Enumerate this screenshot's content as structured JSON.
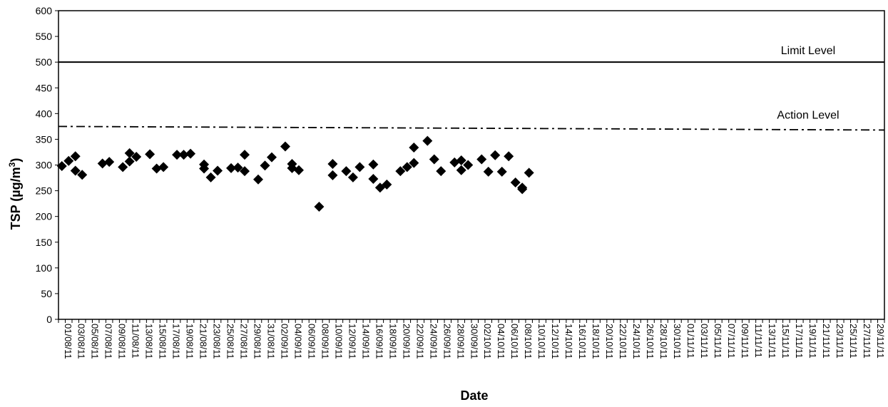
{
  "chart_data": {
    "type": "scatter",
    "title": "",
    "xlabel": "Date",
    "ylabel": "TSP (µg/m³)",
    "ylabel_parts": {
      "main": "TSP (µg/m",
      "superscript": "3",
      "close": ")"
    },
    "ylim": [
      0,
      600
    ],
    "yticks": [
      0,
      50,
      100,
      150,
      200,
      250,
      300,
      350,
      400,
      450,
      500,
      550,
      600
    ],
    "grid": false,
    "x_start_date": "2011-08-01",
    "x_end_date": "2011-11-30",
    "x_tick_labels": [
      "01/08/11",
      "03/08/11",
      "05/08/11",
      "07/08/11",
      "09/08/11",
      "11/08/11",
      "13/08/11",
      "15/08/11",
      "17/08/11",
      "19/08/11",
      "21/08/11",
      "23/08/11",
      "25/08/11",
      "27/08/11",
      "29/08/11",
      "31/08/11",
      "02/09/11",
      "04/09/11",
      "06/09/11",
      "08/09/11",
      "10/09/11",
      "12/09/11",
      "14/09/11",
      "16/09/11",
      "18/09/11",
      "20/09/11",
      "22/09/11",
      "24/09/11",
      "26/09/11",
      "28/09/11",
      "30/09/11",
      "02/10/11",
      "04/10/11",
      "06/10/11",
      "08/10/11",
      "10/10/11",
      "12/10/11",
      "14/10/11",
      "16/10/11",
      "18/10/11",
      "20/10/11",
      "22/10/11",
      "24/10/11",
      "26/10/11",
      "28/10/11",
      "30/10/11",
      "01/11/11",
      "03/11/11",
      "05/11/11",
      "07/11/11",
      "09/11/11",
      "11/11/11",
      "13/11/11",
      "15/11/11",
      "17/11/11",
      "19/11/11",
      "21/11/11",
      "23/11/11",
      "25/11/11",
      "27/11/11",
      "29/11/11"
    ],
    "reference_lines": [
      {
        "label": "Limit Level",
        "y": 500,
        "style": "solid"
      },
      {
        "label": "Action Level",
        "y": 375,
        "y_end": 368,
        "style": "dash-dot"
      }
    ],
    "series": [
      {
        "marker": "diamond",
        "color": "#000000",
        "points": [
          {
            "x": "2011-08-01",
            "y": 298
          },
          {
            "x": "2011-08-02",
            "y": 308
          },
          {
            "x": "2011-08-03",
            "y": 317
          },
          {
            "x": "2011-08-03",
            "y": 289
          },
          {
            "x": "2011-08-04",
            "y": 281
          },
          {
            "x": "2011-08-07",
            "y": 303
          },
          {
            "x": "2011-08-08",
            "y": 306
          },
          {
            "x": "2011-08-10",
            "y": 296
          },
          {
            "x": "2011-08-11",
            "y": 323
          },
          {
            "x": "2011-08-11",
            "y": 307
          },
          {
            "x": "2011-08-12",
            "y": 316
          },
          {
            "x": "2011-08-14",
            "y": 321
          },
          {
            "x": "2011-08-15",
            "y": 293
          },
          {
            "x": "2011-08-16",
            "y": 296
          },
          {
            "x": "2011-08-18",
            "y": 320
          },
          {
            "x": "2011-08-19",
            "y": 320
          },
          {
            "x": "2011-08-20",
            "y": 322
          },
          {
            "x": "2011-08-22",
            "y": 301
          },
          {
            "x": "2011-08-22",
            "y": 293
          },
          {
            "x": "2011-08-23",
            "y": 276
          },
          {
            "x": "2011-08-24",
            "y": 289
          },
          {
            "x": "2011-08-26",
            "y": 294
          },
          {
            "x": "2011-08-27",
            "y": 295
          },
          {
            "x": "2011-08-28",
            "y": 320
          },
          {
            "x": "2011-08-28",
            "y": 288
          },
          {
            "x": "2011-08-30",
            "y": 272
          },
          {
            "x": "2011-08-31",
            "y": 299
          },
          {
            "x": "2011-09-01",
            "y": 315
          },
          {
            "x": "2011-09-03",
            "y": 336
          },
          {
            "x": "2011-09-04",
            "y": 302
          },
          {
            "x": "2011-09-04",
            "y": 294
          },
          {
            "x": "2011-09-05",
            "y": 290
          },
          {
            "x": "2011-09-08",
            "y": 219
          },
          {
            "x": "2011-09-10",
            "y": 302
          },
          {
            "x": "2011-09-10",
            "y": 280
          },
          {
            "x": "2011-09-12",
            "y": 288
          },
          {
            "x": "2011-09-13",
            "y": 276
          },
          {
            "x": "2011-09-14",
            "y": 296
          },
          {
            "x": "2011-09-16",
            "y": 301
          },
          {
            "x": "2011-09-16",
            "y": 273
          },
          {
            "x": "2011-09-17",
            "y": 256
          },
          {
            "x": "2011-09-18",
            "y": 262
          },
          {
            "x": "2011-09-20",
            "y": 288
          },
          {
            "x": "2011-09-21",
            "y": 296
          },
          {
            "x": "2011-09-22",
            "y": 304
          },
          {
            "x": "2011-09-22",
            "y": 334
          },
          {
            "x": "2011-09-24",
            "y": 347
          },
          {
            "x": "2011-09-25",
            "y": 311
          },
          {
            "x": "2011-09-26",
            "y": 288
          },
          {
            "x": "2011-09-28",
            "y": 305
          },
          {
            "x": "2011-09-29",
            "y": 309
          },
          {
            "x": "2011-09-29",
            "y": 290
          },
          {
            "x": "2011-09-30",
            "y": 300
          },
          {
            "x": "2011-10-02",
            "y": 311
          },
          {
            "x": "2011-10-03",
            "y": 287
          },
          {
            "x": "2011-10-04",
            "y": 319
          },
          {
            "x": "2011-10-05",
            "y": 287
          },
          {
            "x": "2011-10-06",
            "y": 317
          },
          {
            "x": "2011-10-07",
            "y": 266
          },
          {
            "x": "2011-10-08",
            "y": 256
          },
          {
            "x": "2011-10-08",
            "y": 253
          },
          {
            "x": "2011-10-09",
            "y": 285
          }
        ]
      }
    ]
  }
}
